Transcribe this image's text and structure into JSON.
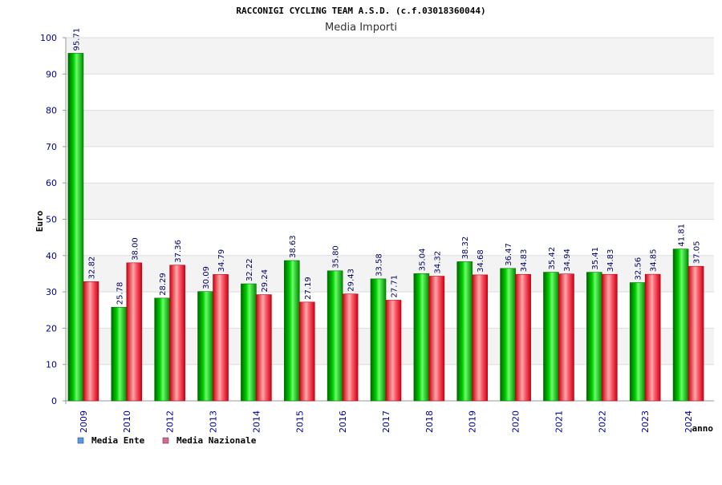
{
  "chart_data": {
    "type": "bar",
    "title": "RACCONIGI CYCLING TEAM A.S.D. (c.f.03018360044)",
    "subtitle": "Media Importi",
    "xlabel": "anno",
    "ylabel": "Euro",
    "ylim": [
      0,
      100
    ],
    "yticks": [
      0,
      10,
      20,
      30,
      40,
      50,
      60,
      70,
      80,
      90,
      100
    ],
    "categories": [
      "2009",
      "2010",
      "2012",
      "2013",
      "2014",
      "2015",
      "2016",
      "2017",
      "2018",
      "2019",
      "2020",
      "2021",
      "2022",
      "2023",
      "2024"
    ],
    "series": [
      {
        "name": "Media Ente",
        "color": "#00bb00",
        "values": [
          95.71,
          25.78,
          28.29,
          30.09,
          32.22,
          38.63,
          35.8,
          33.58,
          35.04,
          38.32,
          36.47,
          35.42,
          35.41,
          32.56,
          41.81
        ],
        "labels": [
          "95.71",
          "25.78",
          "28.29",
          "30.09",
          "32.22",
          "38.63",
          "35.80",
          "33.58",
          "35.04",
          "38.32",
          "36.47",
          "35.42",
          "35.41",
          "32.56",
          "41.81"
        ]
      },
      {
        "name": "Media Nazionale",
        "color": "#dd2233",
        "values": [
          32.82,
          38.0,
          37.36,
          34.79,
          29.24,
          27.19,
          29.43,
          27.71,
          34.32,
          34.68,
          34.83,
          34.94,
          34.83,
          34.85,
          37.05
        ],
        "labels": [
          "32.82",
          "38.00",
          "37.36",
          "34.79",
          "29.24",
          "27.19",
          "29.43",
          "27.71",
          "34.32",
          "34.68",
          "34.83",
          "34.94",
          "34.83",
          "34.85",
          "37.05"
        ]
      }
    ],
    "legend": {
      "position": "bottom-left",
      "entries": [
        {
          "label": "Media Ente",
          "color": "#5599ee"
        },
        {
          "label": "Media Nazionale",
          "color": "#dd6699"
        }
      ]
    },
    "grid": true
  }
}
